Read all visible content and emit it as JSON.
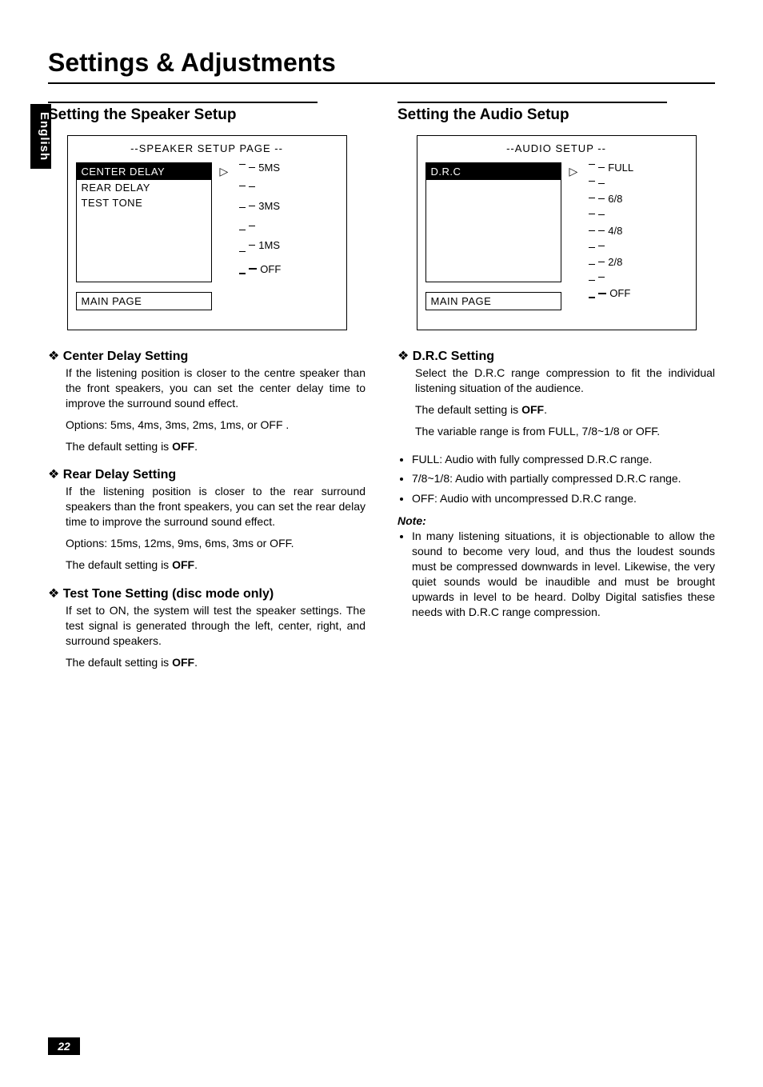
{
  "page": {
    "main_title": "Settings & Adjustments",
    "side_tab": "English",
    "page_number": "22"
  },
  "left": {
    "section_title": "Setting the Speaker Setup",
    "screen": {
      "title": "--SPEAKER SETUP PAGE --",
      "menu": {
        "selected": "CENTER DELAY",
        "rows": [
          "REAR DELAY",
          "TEST TONE"
        ]
      },
      "scale_labels": [
        "5MS",
        "3MS",
        "1MS",
        "OFF"
      ],
      "main_page": "MAIN PAGE"
    },
    "items": [
      {
        "head": "Center Delay Setting",
        "paras": [
          "If the listening position is closer to the centre speaker than the front speakers, you can set the center delay time to improve the surround sound effect.",
          "Options: 5ms, 4ms, 3ms, 2ms, 1ms, or OFF .",
          "The default setting is <b>OFF</b>."
        ]
      },
      {
        "head": "Rear Delay Setting",
        "paras": [
          "If the listening position is closer to the rear surround speakers than the front speakers, you can set the rear delay time to improve the surround sound effect.",
          "Options: 15ms, 12ms, 9ms, 6ms, 3ms or OFF.",
          "The default setting is <b>OFF</b>."
        ]
      },
      {
        "head": "Test Tone  Setting (disc mode only)",
        "paras": [
          "If set to ON, the system will test the speaker settings. The test signal is generated through the left, center, right, and surround speakers.",
          "The default setting is <b>OFF</b>."
        ]
      }
    ]
  },
  "right": {
    "section_title": "Setting the Audio Setup",
    "screen": {
      "title": "--AUDIO SETUP --",
      "menu": {
        "selected": "D.R.C"
      },
      "scale_labels": [
        "FULL",
        "6/8",
        "4/8",
        "2/8",
        "OFF"
      ],
      "main_page": "MAIN PAGE"
    },
    "items": [
      {
        "head": "D.R.C Setting",
        "paras": [
          "Select the D.R.C range compression to fit the individual listening situation of the audience.",
          "The default setting is <b>OFF</b>.",
          "The variable range is from FULL, 7/8~1/8 or OFF."
        ],
        "bullets": [
          "FULL: Audio with fully compressed D.R.C range.",
          "7/8~1/8: Audio with partially compressed D.R.C range.",
          "OFF: Audio with uncompressed D.R.C range."
        ],
        "note_label": "Note:",
        "note_bullets": [
          "In many listening situations, it is objectionable to allow the sound to become very loud, and thus the loudest sounds must be compressed downwards in level. Likewise, the very quiet sounds would be inaudible and must be brought upwards in level to be heard. Dolby Digital satisfies these needs with D.R.C range compression."
        ]
      }
    ]
  }
}
